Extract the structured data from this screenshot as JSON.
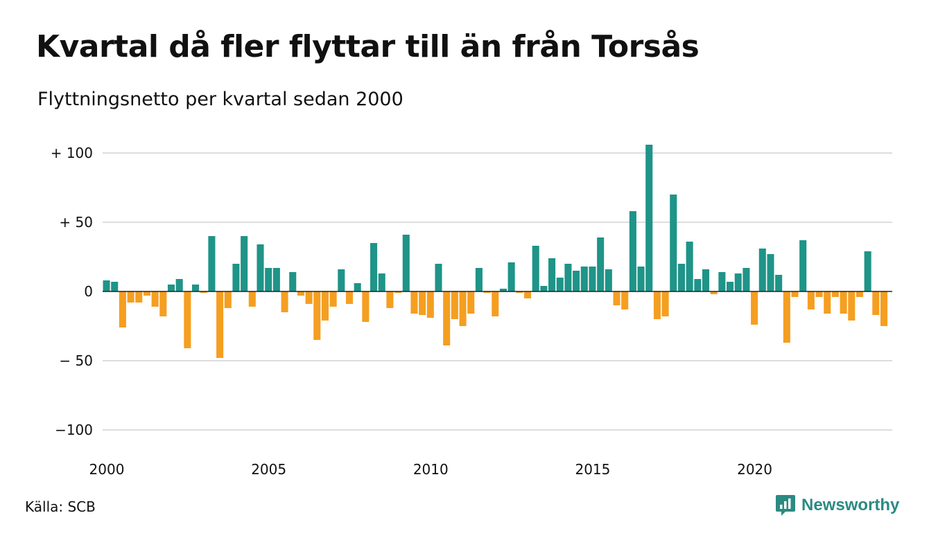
{
  "chart_data": {
    "type": "bar",
    "title": "Kvartal då fler flyttar till än från Torsås",
    "subtitle": "Flyttningsnetto per kvartal sedan 2000",
    "source": "Källa: SCB",
    "y_ticks": [
      {
        "value": 100,
        "label": "+ 100"
      },
      {
        "value": 50,
        "label": "+  50"
      },
      {
        "value": 0,
        "label": "0"
      },
      {
        "value": -50,
        "label": "− 50"
      },
      {
        "value": -100,
        "label": "−100"
      }
    ],
    "x_ticks": [
      {
        "year": 2000,
        "label": "2000"
      },
      {
        "year": 2005,
        "label": "2005"
      },
      {
        "year": 2010,
        "label": "2010"
      },
      {
        "year": 2015,
        "label": "2015"
      },
      {
        "year": 2020,
        "label": "2020"
      }
    ],
    "ylim": [
      -100,
      105
    ],
    "start_year": 2000,
    "grid": true,
    "positive_color": "#1f9488",
    "negative_color": "#f59f21",
    "values": [
      8,
      7,
      -26,
      -8,
      -8,
      -3,
      -11,
      -18,
      5,
      9,
      -41,
      5,
      -1,
      40,
      -48,
      -12,
      20,
      40,
      -11,
      34,
      17,
      17,
      -15,
      14,
      -3,
      -9,
      -35,
      -21,
      -11,
      16,
      -9,
      6,
      -22,
      35,
      13,
      -12,
      -1,
      41,
      -16,
      -17,
      -19,
      20,
      -39,
      -20,
      -25,
      -16,
      17,
      -1,
      -18,
      2,
      21,
      -1,
      -5,
      33,
      4,
      24,
      10,
      20,
      15,
      18,
      18,
      39,
      16,
      -10,
      -13,
      58,
      18,
      106,
      -20,
      -18,
      70,
      20,
      36,
      9,
      16,
      -2,
      14,
      7,
      13,
      17,
      -24,
      31,
      27,
      12,
      -37,
      -4,
      37,
      -13,
      -4,
      -16,
      -4,
      -16,
      -21,
      -4,
      29,
      -17,
      -25
    ]
  },
  "brand": {
    "name": "Newsworthy",
    "logo_icon": "newsworthy-logo-icon",
    "color": "#2b8a82"
  }
}
